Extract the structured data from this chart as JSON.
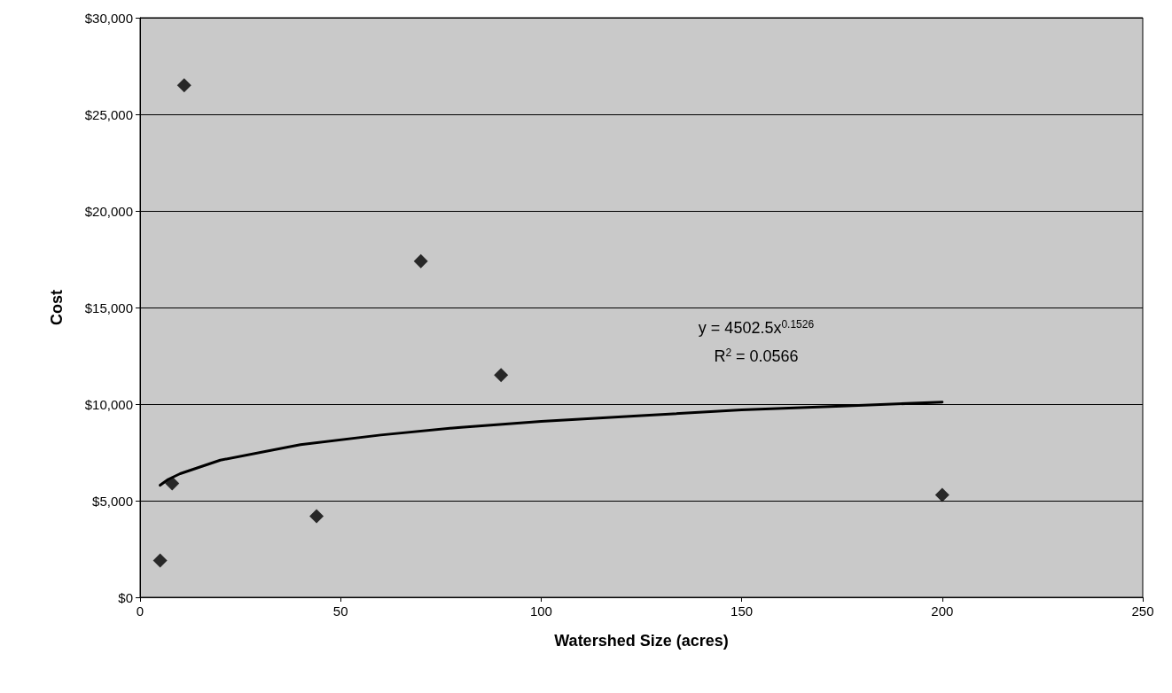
{
  "chart_data": {
    "type": "scatter",
    "xlabel": "Watershed Size (acres)",
    "ylabel": "Cost",
    "xlim": [
      0,
      250
    ],
    "xticks": [
      0,
      50,
      100,
      150,
      200,
      250
    ],
    "ylim": [
      0,
      30000
    ],
    "yticks": [
      {
        "value": 0,
        "label": "$0"
      },
      {
        "value": 5000,
        "label": "$5,000"
      },
      {
        "value": 10000,
        "label": "$10,000"
      },
      {
        "value": 15000,
        "label": "$15,000"
      },
      {
        "value": 20000,
        "label": "$20,000"
      },
      {
        "value": 25000,
        "label": "$25,000"
      },
      {
        "value": 30000,
        "label": "$30,000"
      }
    ],
    "grid": "y",
    "series": [
      {
        "type": "scatter",
        "color": "#000000",
        "marker": "diamond",
        "x": [
          5,
          8,
          11,
          44,
          70,
          90,
          200
        ],
        "values": [
          1900,
          5900,
          26500,
          4200,
          17400,
          11500,
          5300
        ]
      },
      {
        "type": "line",
        "color": "#000000",
        "marker": "none",
        "line_style": "solid",
        "x": [
          5,
          7,
          10,
          20,
          40,
          60,
          80,
          100,
          125,
          150,
          175,
          200
        ],
        "values": [
          5800,
          6100,
          6400,
          7100,
          7900,
          8400,
          8800,
          9100,
          9400,
          9700,
          9900,
          10100
        ]
      }
    ],
    "annotations": [
      "y = 4502.5x$^{0.1526}$",
      "R$^{2}$ = 0.0566"
    ]
  }
}
